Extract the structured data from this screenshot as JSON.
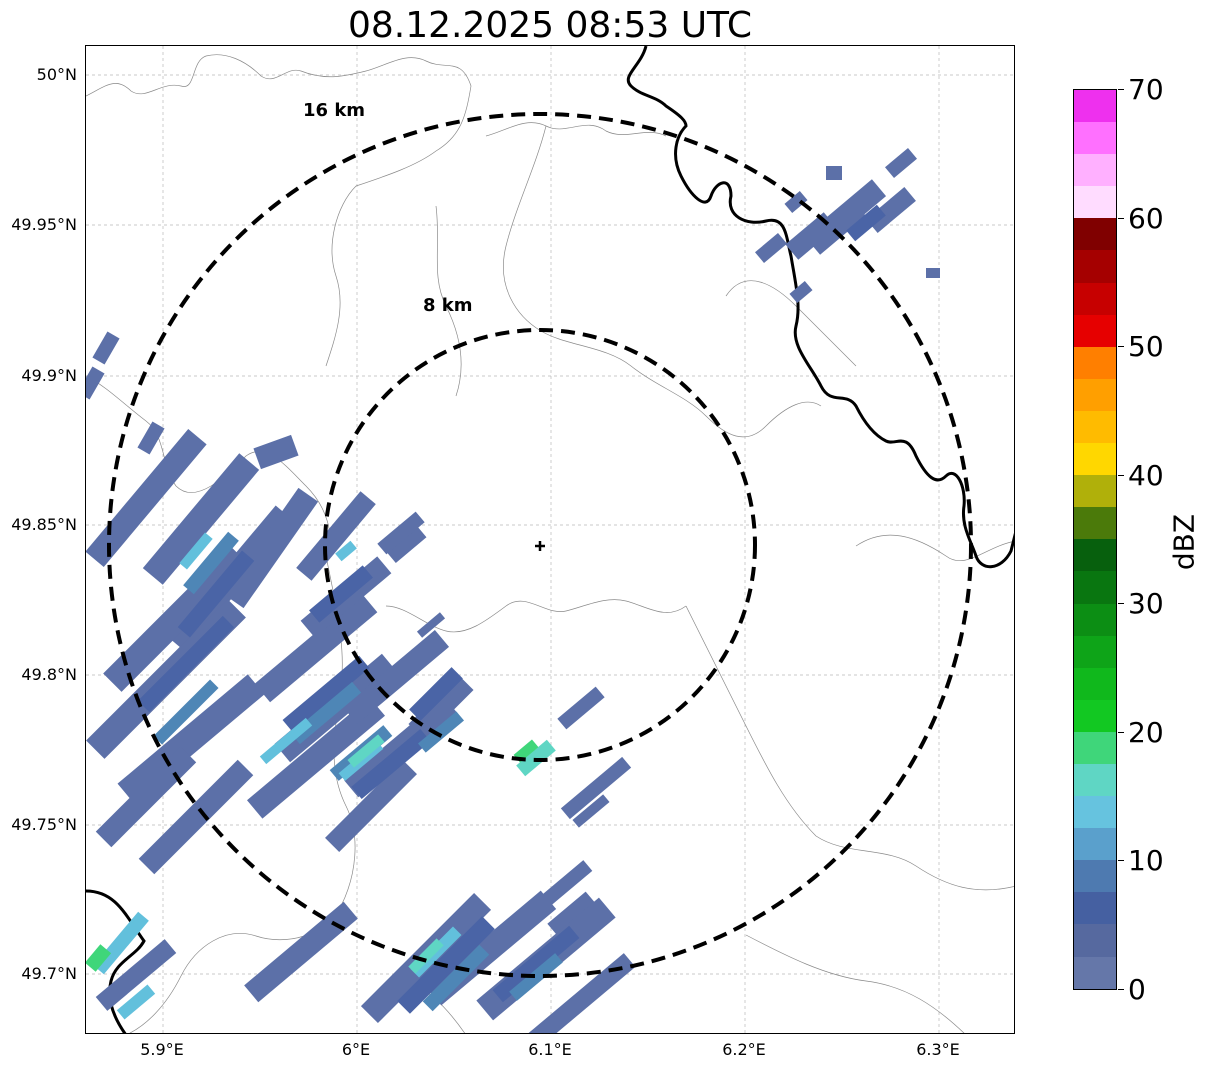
{
  "title": "08.12.2025 08:53 UTC",
  "map": {
    "lat_ticks": [
      "50°N",
      "49.95°N",
      "49.9°N",
      "49.85°N",
      "49.8°N",
      "49.75°N",
      "49.7°N"
    ],
    "lon_ticks": [
      "5.9°E",
      "6°E",
      "6.1°E",
      "6.2°E",
      "6.3°E"
    ],
    "range_rings": [
      {
        "label": "16 km"
      },
      {
        "label": "8 km"
      }
    ],
    "radar_site_icon": "plus-marker"
  },
  "colorbar": {
    "label": "dBZ",
    "ticks": [
      "0",
      "10",
      "20",
      "30",
      "40",
      "50",
      "60",
      "70"
    ],
    "steps": [
      "#6577a9",
      "#56699f",
      "#4560a1",
      "#4e7ab0",
      "#5aa0cc",
      "#66c3df",
      "#5fd6c4",
      "#3fd67a",
      "#12c822",
      "#10b81c",
      "#0ea418",
      "#0c8e14",
      "#097610",
      "#07600d",
      "#4b7a0a",
      "#b0b00a",
      "#ffd700",
      "#ffbb00",
      "#ff9f00",
      "#ff7f00",
      "#e60000",
      "#c70000",
      "#a50000",
      "#800000",
      "#ffdcff",
      "#ffb0ff",
      "#ff70ff",
      "#ee30ee"
    ]
  }
}
